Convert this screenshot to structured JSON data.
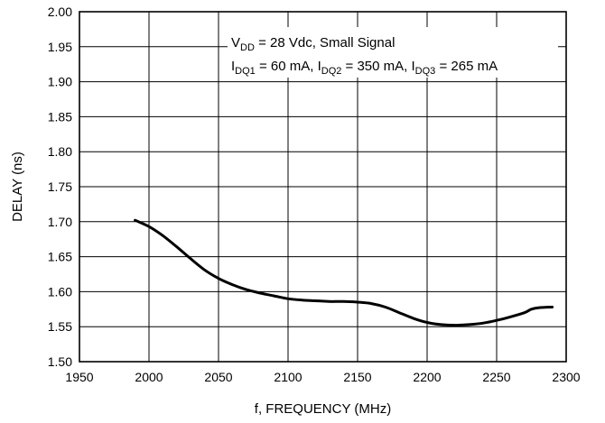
{
  "chart_data": {
    "type": "line",
    "title": "",
    "xlabel": "f, FREQUENCY (MHz)",
    "ylabel": "DELAY (ns)",
    "xlim": [
      1950,
      2300
    ],
    "ylim": [
      1.5,
      2.0
    ],
    "x_ticks": [
      "1950",
      "2000",
      "2050",
      "2100",
      "2150",
      "2200",
      "2250",
      "2300"
    ],
    "y_ticks": [
      "1.50",
      "1.55",
      "1.60",
      "1.65",
      "1.70",
      "1.75",
      "1.80",
      "1.85",
      "1.90",
      "1.95",
      "2.00"
    ],
    "grid": true,
    "annotation": {
      "line1": {
        "a": "V",
        "a_sub": "DD",
        "b": " = 28 Vdc, Small Signal"
      },
      "line2": {
        "a": "I",
        "a_sub": "DQ1",
        "b": " = 60 mA, I",
        "b_sub": "DQ2",
        "c": " = 350 mA, I",
        "c_sub": "DQ3",
        "d": " = 265 mA"
      }
    },
    "series": [
      {
        "x": [
          1990,
          2000,
          2010,
          2020,
          2030,
          2040,
          2050,
          2060,
          2070,
          2080,
          2090,
          2100,
          2110,
          2120,
          2130,
          2140,
          2150,
          2160,
          2170,
          2180,
          2190,
          2200,
          2210,
          2220,
          2230,
          2240,
          2250,
          2260,
          2270,
          2275,
          2280,
          2290
        ],
        "y": [
          1.702,
          1.693,
          1.68,
          1.664,
          1.647,
          1.631,
          1.619,
          1.61,
          1.603,
          1.598,
          1.594,
          1.59,
          1.588,
          1.587,
          1.586,
          1.586,
          1.585,
          1.583,
          1.578,
          1.57,
          1.562,
          1.556,
          1.553,
          1.552,
          1.553,
          1.555,
          1.559,
          1.564,
          1.57,
          1.575,
          1.577,
          1.578
        ]
      }
    ]
  }
}
